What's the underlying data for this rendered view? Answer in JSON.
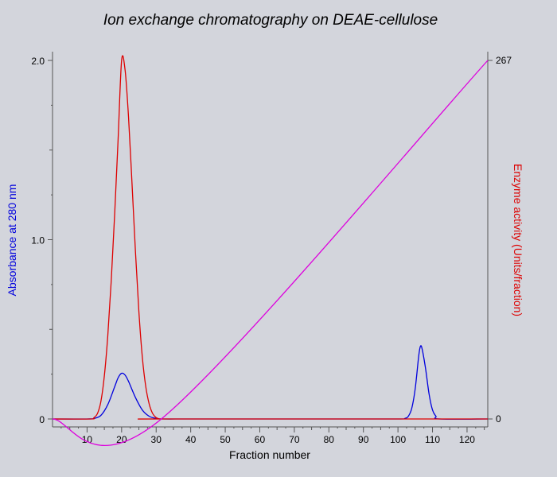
{
  "chart_data": {
    "type": "line",
    "title": "Ion exchange chromatography on DEAE-cellulose",
    "xlabel": "Fraction number",
    "ylabel_left": "Absorbance at 280 nm",
    "ylabel_right": "Enzyme activity (Units/fraction)",
    "xlim": [
      0,
      126
    ],
    "ylim_left": [
      0,
      2.0
    ],
    "ylim_right": [
      0,
      267
    ],
    "x_ticks": [
      10,
      20,
      30,
      40,
      50,
      60,
      70,
      80,
      90,
      100,
      110,
      120
    ],
    "y_left_ticks": [
      {
        "value": 0,
        "label": "0"
      },
      {
        "value": 1.0,
        "label": "1.0"
      },
      {
        "value": 2.0,
        "label": "2.0"
      }
    ],
    "y_right_ticks": [
      {
        "value": 0,
        "label": "0"
      },
      {
        "value": 267,
        "label": "267"
      }
    ],
    "grid": false,
    "series": [
      {
        "axis": "left",
        "color": "#0000dd",
        "x": [
          0,
          10,
          12,
          14,
          16,
          18,
          19,
          20,
          21,
          22,
          24,
          26,
          28,
          30,
          32,
          40,
          60,
          80,
          100,
          102,
          103,
          104,
          105,
          106,
          106.5,
          107,
          108,
          109,
          110,
          111,
          112,
          126
        ],
        "y": [
          0,
          0,
          0.003,
          0.02,
          0.08,
          0.18,
          0.23,
          0.255,
          0.245,
          0.21,
          0.12,
          0.05,
          0.015,
          0.003,
          0,
          0,
          0,
          0,
          0,
          0.003,
          0.015,
          0.06,
          0.17,
          0.35,
          0.405,
          0.39,
          0.28,
          0.14,
          0.05,
          0.015,
          0,
          0
        ]
      },
      {
        "axis": "right",
        "color": "#dd0000",
        "x": [
          0,
          11,
          12,
          13,
          14,
          15,
          16,
          17,
          18,
          19,
          20,
          21,
          22,
          23,
          24,
          25,
          26,
          27,
          28,
          29,
          30,
          31,
          32,
          126
        ],
        "y": [
          0,
          0,
          1,
          4,
          13,
          32,
          62,
          103,
          153,
          209,
          267,
          260,
          225,
          176,
          125,
          80,
          46,
          24,
          11,
          4,
          1,
          0,
          0,
          0
        ]
      },
      {
        "axis": "left",
        "color": "#dd00dd",
        "x": [
          0,
          31.5,
          126
        ],
        "y": [
          0,
          0,
          2.0
        ]
      }
    ]
  }
}
